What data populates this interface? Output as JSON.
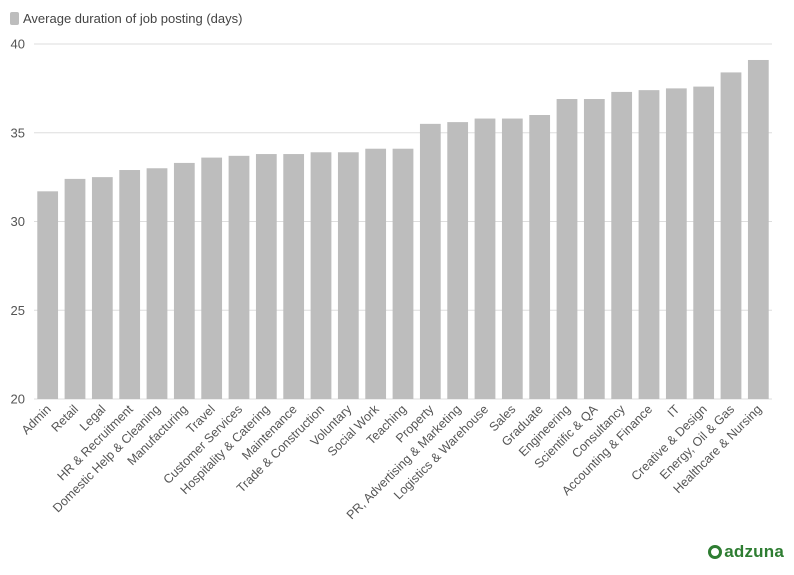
{
  "legend": {
    "label": "Average duration of job posting (days)"
  },
  "brand": {
    "name": "adzuna"
  },
  "colors": {
    "bar": "#bdbdbd",
    "grid": "#dddddd",
    "axis_text": "#555555",
    "brand": "#2e7d32"
  },
  "chart_data": {
    "type": "bar",
    "title": "",
    "xlabel": "",
    "ylabel": "",
    "ylim": [
      20,
      40
    ],
    "yticks": [
      20,
      25,
      30,
      35,
      40
    ],
    "grid": true,
    "legend_position": "top-left",
    "series": [
      {
        "name": "Average duration of job posting (days)"
      }
    ],
    "categories": [
      "Admin",
      "Retail",
      "Legal",
      "HR & Recruitment",
      "Domestic Help & Cleaning",
      "Manufacturing",
      "Travel",
      "Customer Services",
      "Hospitality & Catering",
      "Maintenance",
      "Trade & Construction",
      "Voluntary",
      "Social Work",
      "Teaching",
      "Property",
      "PR, Advertising & Marketing",
      "Logistics & Warehouse",
      "Sales",
      "Graduate",
      "Engineering",
      "Scientific & QA",
      "Consultancy",
      "Accounting & Finance",
      "IT",
      "Creative & Design",
      "Energy, Oil & Gas",
      "Healthcare & Nursing"
    ],
    "values": [
      31.7,
      32.4,
      32.5,
      32.9,
      33.0,
      33.3,
      33.6,
      33.7,
      33.8,
      33.8,
      33.9,
      33.9,
      34.1,
      34.1,
      35.5,
      35.6,
      35.8,
      35.8,
      36.0,
      36.9,
      36.9,
      37.3,
      37.4,
      37.5,
      37.6,
      38.4,
      39.1
    ]
  }
}
